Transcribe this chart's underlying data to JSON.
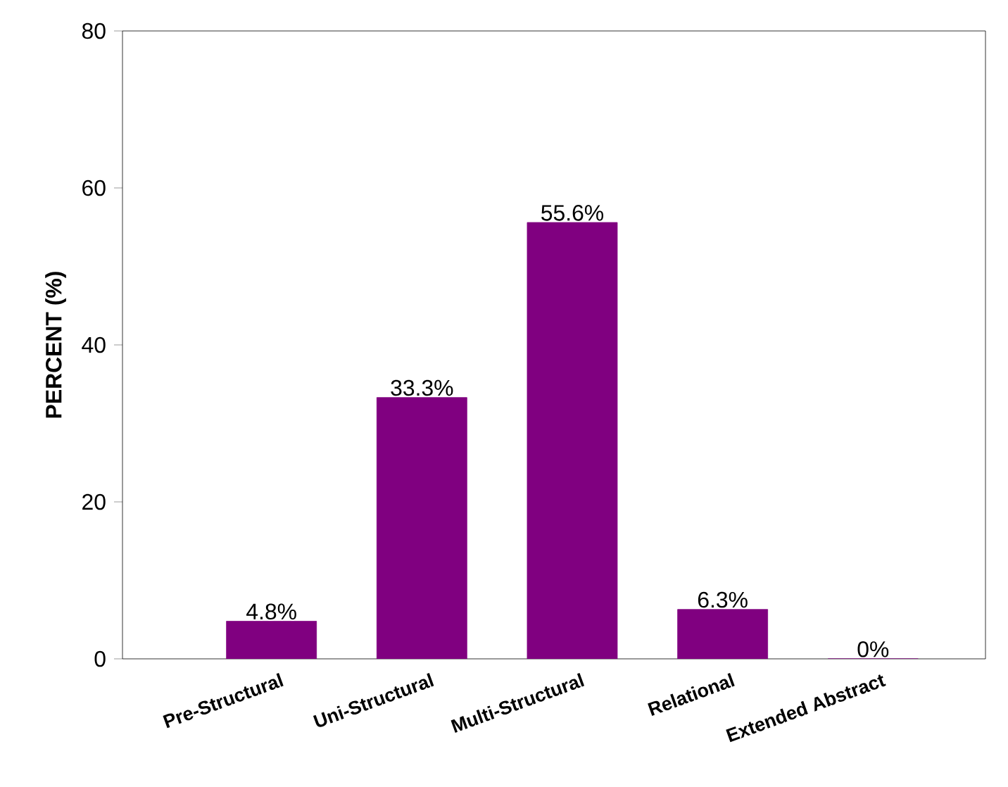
{
  "chart_data": {
    "type": "bar",
    "ylabel": "PERCENT (%)",
    "categories": [
      "Pre-Structural",
      "Uni-Structural",
      "Multi-Structural",
      "Relational",
      "Extended Abstract"
    ],
    "values": [
      4.8,
      33.3,
      55.6,
      6.3,
      0
    ],
    "value_labels": [
      "4.8%",
      "33.3%",
      "55.6%",
      "6.3%",
      "0%"
    ],
    "color": "#800080",
    "ylim": [
      0,
      80
    ],
    "yticks": [
      0,
      20,
      40,
      60,
      80
    ],
    "grid": false
  }
}
